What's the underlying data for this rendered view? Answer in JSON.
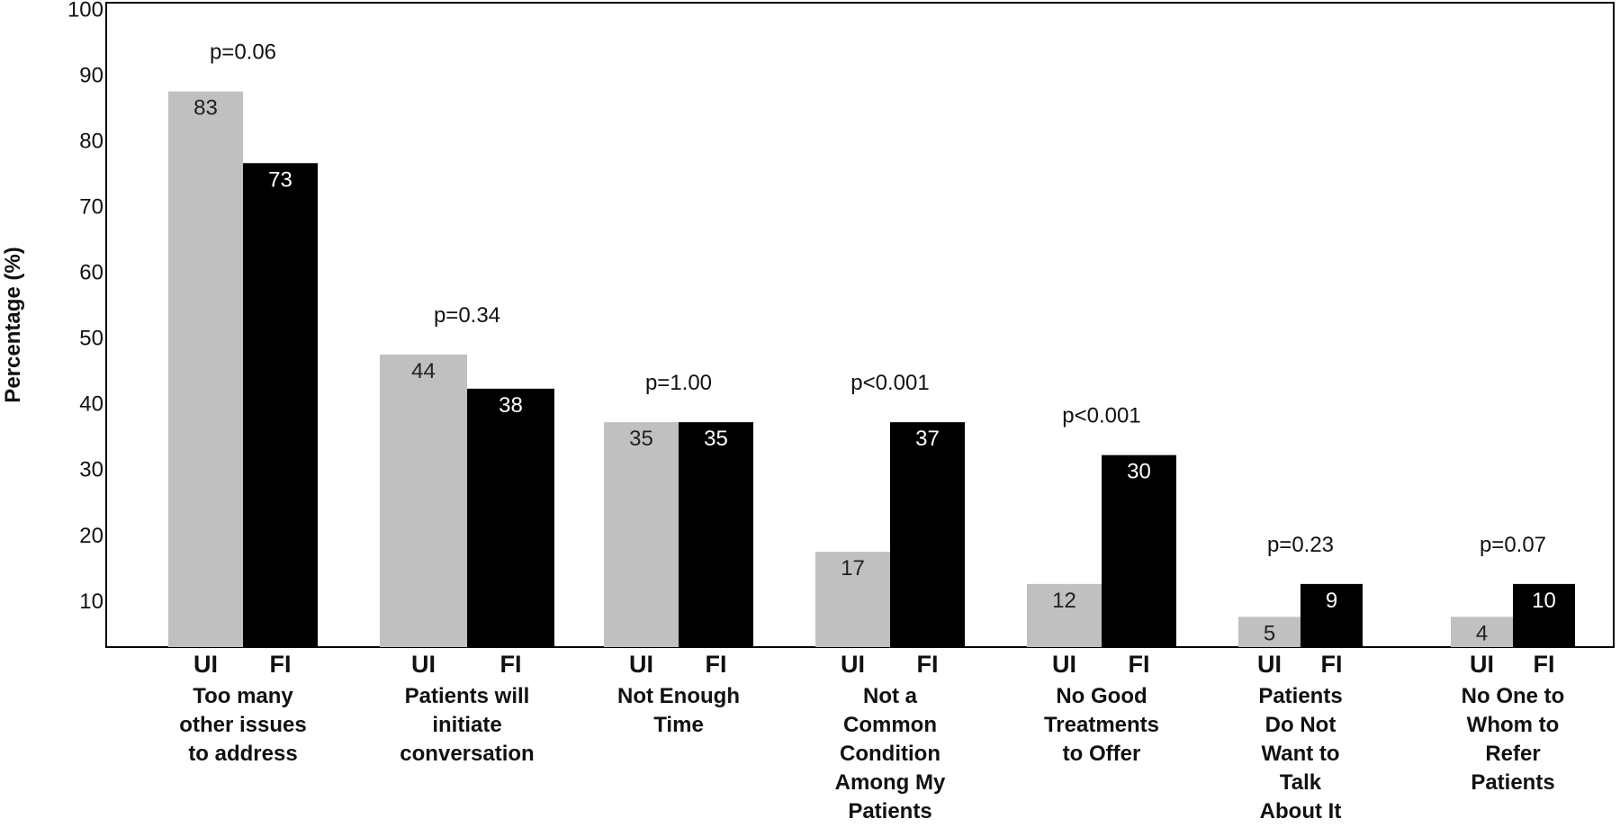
{
  "chart_data": {
    "type": "bar",
    "ylabel": "Percentage (%)",
    "ylim": [
      3,
      101
    ],
    "yticks": [
      10,
      20,
      30,
      40,
      50,
      60,
      70,
      80,
      90,
      100
    ],
    "grid": false,
    "categories": [
      "Too many other issues to address",
      "Patients will initiate conversation",
      "Not Enough Time",
      "Not a Common Condition Among My Patients",
      "No Good Treatments to Offer",
      "Patients Do Not Want to Talk About It",
      "No One to Whom to Refer Patients"
    ],
    "category_label_lines": [
      [
        "Too many",
        "other issues",
        "to address"
      ],
      [
        "Patients will",
        "initiate",
        "conversation"
      ],
      [
        "Not Enough",
        "Time"
      ],
      [
        "Not a",
        "Common",
        "Condition",
        "Among My",
        "Patients"
      ],
      [
        "No Good",
        "Treatments",
        "to Offer"
      ],
      [
        "Patients",
        "Do Not",
        "Want to",
        "Talk",
        "About It"
      ],
      [
        "No One to",
        "Whom to",
        "Refer",
        "Patients"
      ]
    ],
    "series": [
      {
        "name": "UI",
        "color": "#c0c0c0",
        "label_color": "#222222",
        "values": [
          83,
          44,
          35,
          17,
          12,
          5,
          4
        ],
        "bar_heights": [
          87.5,
          47.5,
          37.2,
          17.5,
          12.6,
          7.6,
          7.6
        ]
      },
      {
        "name": "FI",
        "color": "#000000",
        "label_color": "#ffffff",
        "values": [
          73,
          38,
          35,
          37,
          30,
          9,
          10
        ],
        "bar_heights": [
          76.6,
          42.3,
          37.2,
          37.2,
          32.2,
          12.6,
          12.6
        ]
      }
    ],
    "annotations": [
      "p=0.06",
      "p=0.34",
      "p=1.00",
      "p<0.001",
      "p<0.001",
      "p=0.23",
      "p=0.07"
    ]
  }
}
